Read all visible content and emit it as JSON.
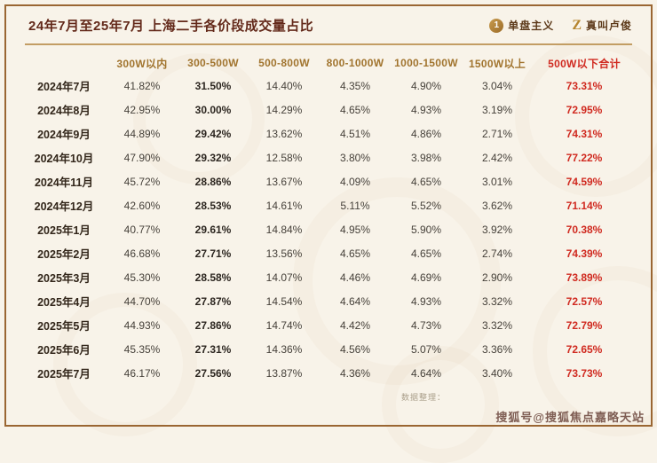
{
  "header": {
    "title": "24年7月至25年7月 上海二手各价段成交量占比",
    "brands": [
      {
        "icon": "1",
        "label": "单盘主义"
      },
      {
        "icon": "Z",
        "label": "真叫卢俊"
      }
    ]
  },
  "chart_data": {
    "type": "table",
    "title": "24年7月至25年7月 上海二手各价段成交量占比",
    "columns": [
      "300W以内",
      "300-500W",
      "500-800W",
      "800-1000W",
      "1000-1500W",
      "1500W以上",
      "500W以下合计"
    ],
    "rows": [
      {
        "label": "2024年7月",
        "values": [
          "41.82%",
          "31.50%",
          "14.40%",
          "4.35%",
          "4.90%",
          "3.04%"
        ],
        "total": "73.31%"
      },
      {
        "label": "2024年8月",
        "values": [
          "42.95%",
          "30.00%",
          "14.29%",
          "4.65%",
          "4.93%",
          "3.19%"
        ],
        "total": "72.95%"
      },
      {
        "label": "2024年9月",
        "values": [
          "44.89%",
          "29.42%",
          "13.62%",
          "4.51%",
          "4.86%",
          "2.71%"
        ],
        "total": "74.31%"
      },
      {
        "label": "2024年10月",
        "values": [
          "47.90%",
          "29.32%",
          "12.58%",
          "3.80%",
          "3.98%",
          "2.42%"
        ],
        "total": "77.22%"
      },
      {
        "label": "2024年11月",
        "values": [
          "45.72%",
          "28.86%",
          "13.67%",
          "4.09%",
          "4.65%",
          "3.01%"
        ],
        "total": "74.59%"
      },
      {
        "label": "2024年12月",
        "values": [
          "42.60%",
          "28.53%",
          "14.61%",
          "5.11%",
          "5.52%",
          "3.62%"
        ],
        "total": "71.14%"
      },
      {
        "label": "2025年1月",
        "values": [
          "40.77%",
          "29.61%",
          "14.84%",
          "4.95%",
          "5.90%",
          "3.92%"
        ],
        "total": "70.38%"
      },
      {
        "label": "2025年2月",
        "values": [
          "46.68%",
          "27.71%",
          "13.56%",
          "4.65%",
          "4.65%",
          "2.74%"
        ],
        "total": "74.39%"
      },
      {
        "label": "2025年3月",
        "values": [
          "45.30%",
          "28.58%",
          "14.07%",
          "4.46%",
          "4.69%",
          "2.90%"
        ],
        "total": "73.89%"
      },
      {
        "label": "2025年4月",
        "values": [
          "44.70%",
          "27.87%",
          "14.54%",
          "4.64%",
          "4.93%",
          "3.32%"
        ],
        "total": "72.57%"
      },
      {
        "label": "2025年5月",
        "values": [
          "44.93%",
          "27.86%",
          "14.74%",
          "4.42%",
          "4.73%",
          "3.32%"
        ],
        "total": "72.79%"
      },
      {
        "label": "2025年6月",
        "values": [
          "45.35%",
          "27.31%",
          "14.36%",
          "4.56%",
          "5.07%",
          "3.36%"
        ],
        "total": "72.65%"
      },
      {
        "label": "2025年7月",
        "values": [
          "46.17%",
          "27.56%",
          "13.87%",
          "4.36%",
          "4.64%",
          "3.40%"
        ],
        "total": "73.73%"
      }
    ],
    "layout": {
      "highlight_last_column": true,
      "grid": false
    }
  },
  "footer": {
    "source_note": "数据整理：",
    "watermark": "搜狐号@搜狐焦点嘉略天站"
  },
  "colors": {
    "background": "#f8f3e9",
    "frame_brown": "#9a6632",
    "title_brown": "#63291a",
    "header_gold": "#a1742e",
    "total_red": "#d02a20"
  }
}
